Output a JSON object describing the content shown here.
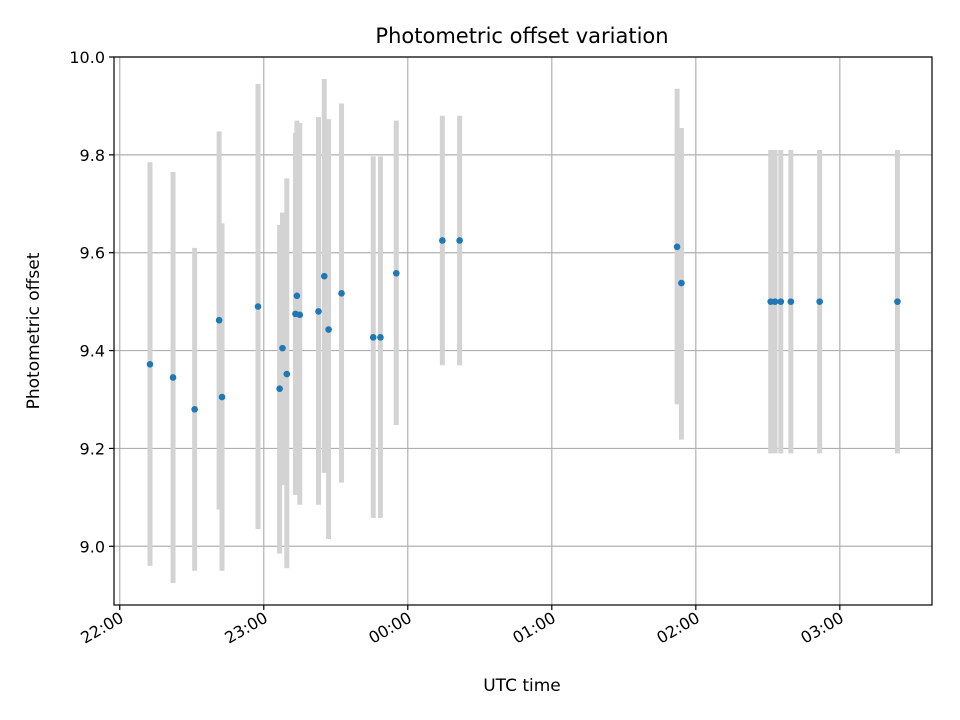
{
  "chart_data": {
    "type": "scatter",
    "title": "Photometric offset variation",
    "xlabel": "UTC time",
    "ylabel": "Photometric offset",
    "x_unit": "hours since 22:00 UTC",
    "xlim": [
      -0.04,
      5.64
    ],
    "ylim": [
      8.88,
      10.0
    ],
    "x_ticks": [
      0,
      1,
      2,
      3,
      4,
      5
    ],
    "x_tick_labels": [
      "22:00",
      "23:00",
      "00:00",
      "01:00",
      "02:00",
      "03:00"
    ],
    "y_ticks": [
      9.0,
      9.2,
      9.4,
      9.6,
      9.8,
      10.0
    ],
    "y_tick_labels": [
      "9.0",
      "9.2",
      "9.4",
      "9.6",
      "9.8",
      "10.0"
    ],
    "grid": true,
    "colors": {
      "points": "#1f77b4",
      "errorbars": "#d3d3d3",
      "grid": "#b0b0b0"
    },
    "points": [
      {
        "x": 0.21,
        "y": 9.372,
        "lo": 8.96,
        "hi": 9.785
      },
      {
        "x": 0.37,
        "y": 9.345,
        "lo": 8.925,
        "hi": 9.765
      },
      {
        "x": 0.52,
        "y": 9.28,
        "lo": 8.95,
        "hi": 9.61
      },
      {
        "x": 0.69,
        "y": 9.462,
        "lo": 9.075,
        "hi": 9.848
      },
      {
        "x": 0.71,
        "y": 9.305,
        "lo": 8.95,
        "hi": 9.66
      },
      {
        "x": 0.96,
        "y": 9.49,
        "lo": 9.035,
        "hi": 9.945
      },
      {
        "x": 1.11,
        "y": 9.322,
        "lo": 8.985,
        "hi": 9.657
      },
      {
        "x": 1.13,
        "y": 9.405,
        "lo": 9.125,
        "hi": 9.682
      },
      {
        "x": 1.16,
        "y": 9.352,
        "lo": 8.955,
        "hi": 9.752
      },
      {
        "x": 1.22,
        "y": 9.475,
        "lo": 9.105,
        "hi": 9.845
      },
      {
        "x": 1.23,
        "y": 9.512,
        "lo": 9.155,
        "hi": 9.87
      },
      {
        "x": 1.25,
        "y": 9.473,
        "lo": 9.085,
        "hi": 9.865
      },
      {
        "x": 1.38,
        "y": 9.48,
        "lo": 9.085,
        "hi": 9.877
      },
      {
        "x": 1.42,
        "y": 9.552,
        "lo": 9.15,
        "hi": 9.955
      },
      {
        "x": 1.45,
        "y": 9.443,
        "lo": 9.015,
        "hi": 9.873
      },
      {
        "x": 1.54,
        "y": 9.517,
        "lo": 9.13,
        "hi": 9.905
      },
      {
        "x": 1.76,
        "y": 9.427,
        "lo": 9.058,
        "hi": 9.797
      },
      {
        "x": 1.81,
        "y": 9.427,
        "lo": 9.058,
        "hi": 9.797
      },
      {
        "x": 1.92,
        "y": 9.558,
        "lo": 9.248,
        "hi": 9.87
      },
      {
        "x": 2.24,
        "y": 9.625,
        "lo": 9.37,
        "hi": 9.88
      },
      {
        "x": 2.36,
        "y": 9.625,
        "lo": 9.37,
        "hi": 9.88
      },
      {
        "x": 3.87,
        "y": 9.612,
        "lo": 9.29,
        "hi": 9.935
      },
      {
        "x": 3.9,
        "y": 9.538,
        "lo": 9.218,
        "hi": 9.855
      },
      {
        "x": 4.52,
        "y": 9.5,
        "lo": 9.19,
        "hi": 9.81
      },
      {
        "x": 4.55,
        "y": 9.5,
        "lo": 9.19,
        "hi": 9.81
      },
      {
        "x": 4.59,
        "y": 9.5,
        "lo": 9.19,
        "hi": 9.81
      },
      {
        "x": 4.66,
        "y": 9.5,
        "lo": 9.19,
        "hi": 9.81
      },
      {
        "x": 4.86,
        "y": 9.5,
        "lo": 9.19,
        "hi": 9.81
      },
      {
        "x": 5.4,
        "y": 9.5,
        "lo": 9.19,
        "hi": 9.81
      }
    ]
  }
}
